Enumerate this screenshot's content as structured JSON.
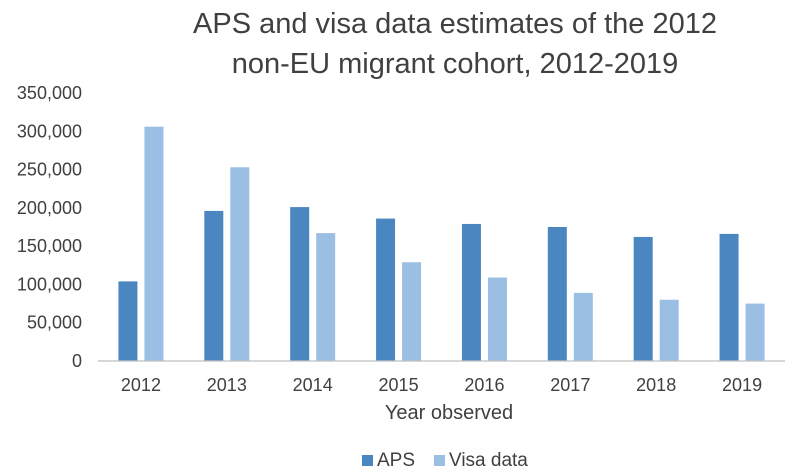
{
  "chart_data": {
    "type": "bar",
    "title_lines": [
      "APS and visa data estimates of the 2012",
      "non-EU migrant cohort, 2012-2019"
    ],
    "xlabel": "Year observed",
    "ylabel": "",
    "categories": [
      "2012",
      "2013",
      "2014",
      "2015",
      "2016",
      "2017",
      "2018",
      "2019"
    ],
    "series": [
      {
        "name": "APS",
        "color": "#4a86c0",
        "values": [
          104000,
          196000,
          201000,
          186000,
          179000,
          175000,
          162000,
          166000
        ]
      },
      {
        "name": "Visa data",
        "color": "#9bbfe3",
        "values": [
          306000,
          253000,
          167000,
          129000,
          109000,
          89000,
          80000,
          75000
        ]
      }
    ],
    "ylim": [
      0,
      350000
    ],
    "yticks": [
      0,
      50000,
      100000,
      150000,
      200000,
      250000,
      300000,
      350000
    ],
    "ytick_labels": [
      "0",
      "50,000",
      "100,000",
      "150,000",
      "200,000",
      "250,000",
      "300,000",
      "350,000"
    ],
    "grid": false,
    "legend_position": "bottom"
  }
}
